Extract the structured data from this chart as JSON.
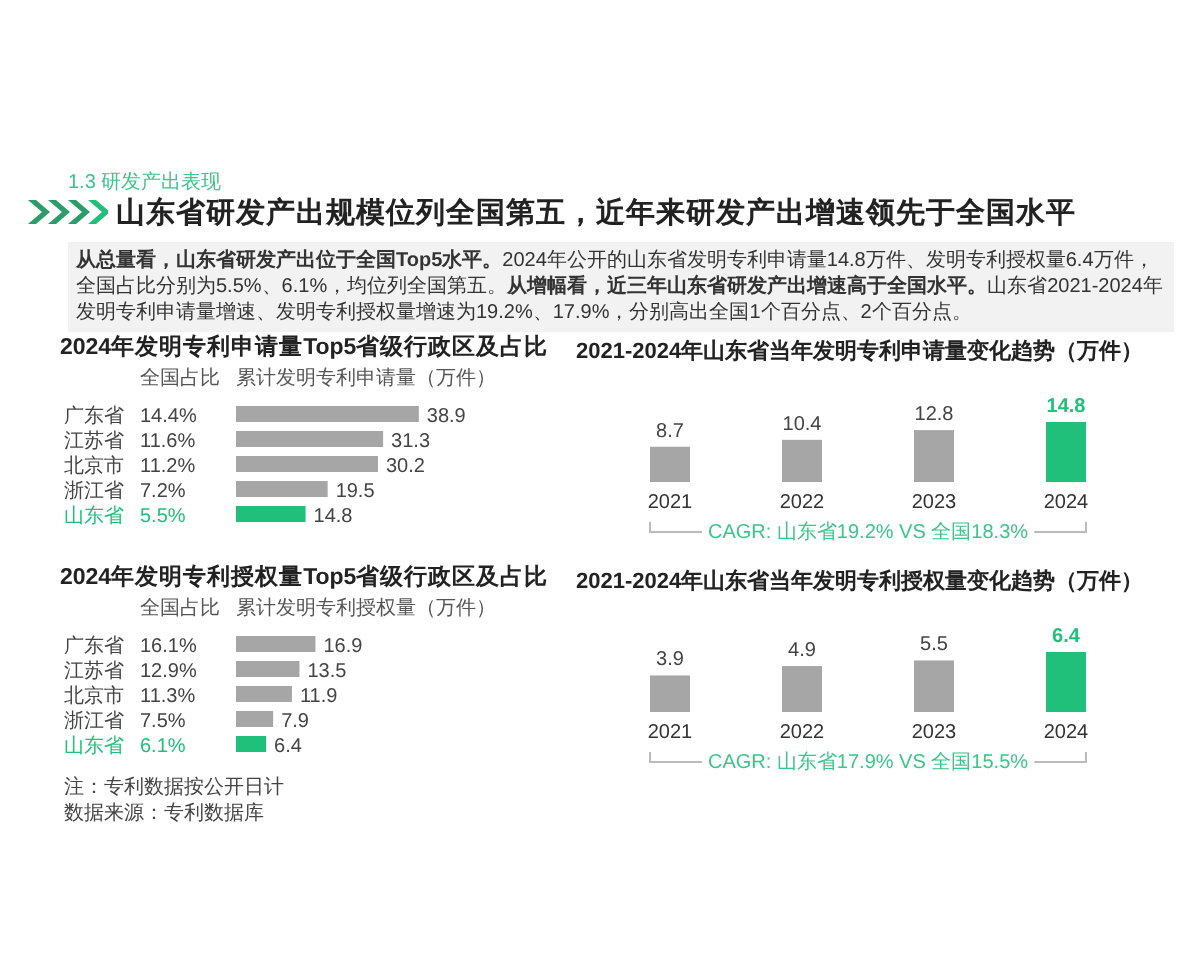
{
  "chart_data": [
    {
      "type": "other",
      "subtitle": "1.3 研发产出表现",
      "title": "山东省研发产出规模位列全国第五，近年来研发产出增速领先于全国水平",
      "annotations": [
        "**从总量看，山东省研发产出位于全国Top5水平。**2024年公开的山东省发明专利申请量14.8万件、发明专利授权量6.4万件，全国占比分别为5.5%、6.1%，均位列全国第五。**从增幅看，近三年山东省研发产出增速高于全国水平。**山东省2021-2024年发明专利申请量增速、发明专利授权量增速为19.2%、17.9%，分别高出全国1个百分点、2个百分点。"
      ]
    },
    {
      "type": "bar",
      "orientation": "horizontal",
      "title": "2024年发明专利申请量Top5省级行政区及占比",
      "xlabel": "累计发明专利申请量（万件）",
      "categories": [
        "广东省",
        "江苏省",
        "北京市",
        "浙江省",
        "山东省"
      ],
      "values": [
        38.9,
        31.3,
        30.2,
        19.5,
        14.8
      ],
      "colors": [
        "#a6a6a6",
        "#a6a6a6",
        "#a6a6a6",
        "#a6a6a6",
        "#21c07a"
      ],
      "data_labels": true,
      "annotations": [
        "全国占比",
        "14.4%",
        "11.6%",
        "11.2%",
        "7.2%",
        "5.5%"
      ]
    },
    {
      "type": "bar",
      "orientation": "horizontal",
      "title": "2024年发明专利授权量Top5省级行政区及占比",
      "xlabel": "累计发明专利授权量（万件）",
      "categories": [
        "广东省",
        "江苏省",
        "北京市",
        "浙江省",
        "山东省"
      ],
      "values": [
        16.9,
        13.5,
        11.9,
        7.9,
        6.4
      ],
      "colors": [
        "#a6a6a6",
        "#a6a6a6",
        "#a6a6a6",
        "#a6a6a6",
        "#21c07a"
      ],
      "data_labels": true,
      "annotations": [
        "全国占比",
        "16.1%",
        "12.9%",
        "11.3%",
        "7.5%",
        "6.1%",
        "注：专利数据按公开日计",
        "数据来源：专利数据库"
      ]
    },
    {
      "type": "bar",
      "title": "2021-2024年山东省当年发明专利申请量变化趋势（万件）",
      "categories": [
        "2021",
        "2022",
        "2023",
        "2024"
      ],
      "values": [
        8.7,
        10.4,
        12.8,
        14.8
      ],
      "colors": [
        "#a6a6a6",
        "#a6a6a6",
        "#a6a6a6",
        "#21c07a"
      ],
      "data_labels": true,
      "annotations": [
        "CAGR: 山东省19.2% VS 全国18.3%"
      ]
    },
    {
      "type": "bar",
      "title": "2021-2024年山东省当年发明专利授权量变化趋势（万件）",
      "categories": [
        "2021",
        "2022",
        "2023",
        "2024"
      ],
      "values": [
        3.9,
        4.9,
        5.5,
        6.4
      ],
      "colors": [
        "#a6a6a6",
        "#a6a6a6",
        "#a6a6a6",
        "#21c07a"
      ],
      "data_labels": true,
      "annotations": [
        "CAGR: 山东省17.9% VS 全国15.5%"
      ]
    }
  ]
}
